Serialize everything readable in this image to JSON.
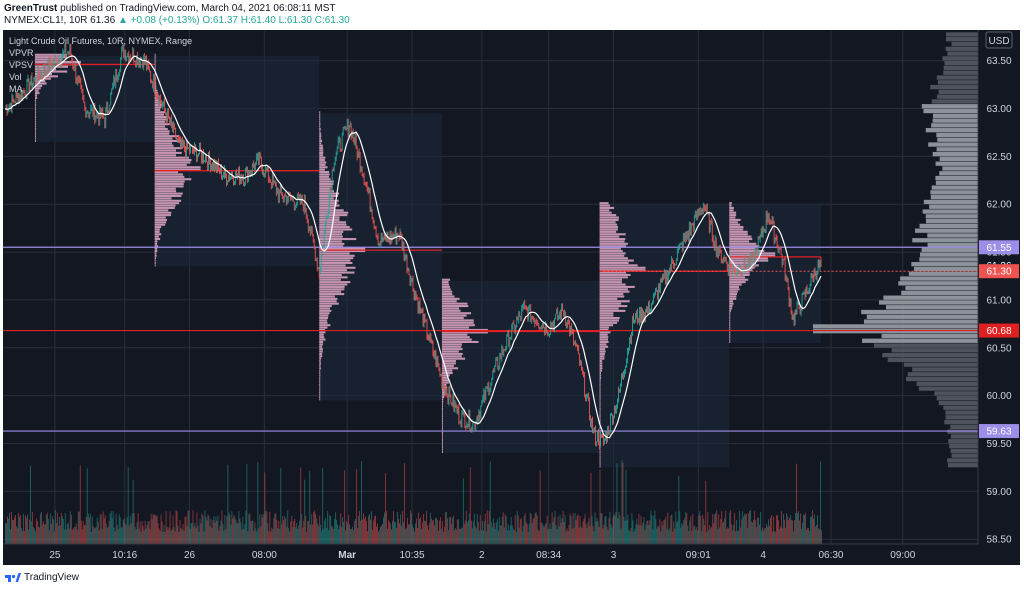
{
  "header": {
    "author": "GreenTrust",
    "published": "published on TradingView.com, March 04, 2021 06:08:11 MST",
    "symbol": "NYMEX:CL1!, 10R",
    "last": "61.36",
    "change": "▲ +0.08 (+0.13%)",
    "ohlc": {
      "o": "O:61.37",
      "h": "H:61.40",
      "l": "L:61.30",
      "c": "C:61.30"
    }
  },
  "legend": {
    "title": "Light Crude Oil Futures, 10R, NYMEX, Range",
    "indicators": [
      "VPVR",
      "VPSV",
      "Vol",
      "MA"
    ]
  },
  "currency_label": "USD",
  "footer": {
    "brand": "TradingView"
  },
  "colors": {
    "background": "#131722",
    "grid": "#2a2e39",
    "text": "#d1d4dc",
    "up": "#26a69a",
    "down": "#ef5350",
    "ma": "#ffffff",
    "poc": "#e02020",
    "level": "#9c8de8",
    "vpvr": "#9aa0a6",
    "vpsv": "#e3a8c7"
  },
  "chart_data": {
    "type": "line",
    "title": "Light Crude Oil Futures, 10R, NYMEX, Range",
    "ylabel": "USD",
    "ylim": [
      58.45,
      63.82
    ],
    "y_ticks": [
      "63.50",
      "63.00",
      "62.50",
      "62.00",
      "61.50",
      "61.00",
      "60.50",
      "60.00",
      "59.50",
      "59.00",
      "58.50"
    ],
    "x_ticks": [
      "25",
      "10:16",
      "26",
      "08:00",
      "Mar",
      "10:35",
      "2",
      "08:34",
      "3",
      "09:01",
      "4",
      "06:30",
      "09:00"
    ],
    "x_tick_bars": [
      50,
      120,
      185,
      260,
      343,
      408,
      478,
      545,
      610,
      695,
      760,
      828,
      900
    ],
    "bar_count": 820,
    "series": [
      {
        "type": "price",
        "knots": [
          [
            0,
            63.0
          ],
          [
            30,
            63.3
          ],
          [
            50,
            63.5
          ],
          [
            65,
            63.6
          ],
          [
            80,
            63.0
          ],
          [
            100,
            62.9
          ],
          [
            118,
            63.6
          ],
          [
            140,
            63.5
          ],
          [
            155,
            63.1
          ],
          [
            175,
            62.6
          ],
          [
            200,
            62.5
          ],
          [
            220,
            62.3
          ],
          [
            240,
            62.3
          ],
          [
            255,
            62.45
          ],
          [
            275,
            62.1
          ],
          [
            300,
            62.0
          ],
          [
            315,
            61.3
          ],
          [
            330,
            62.5
          ],
          [
            345,
            62.85
          ],
          [
            360,
            62.3
          ],
          [
            375,
            61.6
          ],
          [
            395,
            61.7
          ],
          [
            410,
            61.1
          ],
          [
            425,
            60.6
          ],
          [
            440,
            60.1
          ],
          [
            455,
            59.8
          ],
          [
            470,
            59.7
          ],
          [
            485,
            60.1
          ],
          [
            500,
            60.5
          ],
          [
            520,
            60.9
          ],
          [
            545,
            60.7
          ],
          [
            560,
            60.9
          ],
          [
            575,
            60.4
          ],
          [
            590,
            59.6
          ],
          [
            600,
            59.5
          ],
          [
            615,
            60.0
          ],
          [
            630,
            60.8
          ],
          [
            645,
            60.9
          ],
          [
            660,
            61.2
          ],
          [
            680,
            61.6
          ],
          [
            700,
            62.0
          ],
          [
            715,
            61.5
          ],
          [
            730,
            61.3
          ],
          [
            750,
            61.4
          ],
          [
            765,
            61.9
          ],
          [
            780,
            61.4
          ],
          [
            790,
            60.8
          ],
          [
            800,
            61.0
          ],
          [
            812,
            61.3
          ],
          [
            818,
            61.36
          ]
        ]
      }
    ],
    "horizontal_levels": [
      {
        "price": 61.55,
        "color": "#9c8de8"
      },
      {
        "price": 60.68,
        "color": "#e02020"
      },
      {
        "price": 59.63,
        "color": "#9c8de8"
      }
    ],
    "price_labels": [
      {
        "price": 61.55,
        "text": "61.55",
        "bg": "#9c8de8"
      },
      {
        "price": 61.36,
        "text": "61.36",
        "bg": "#131722"
      },
      {
        "price": 61.3,
        "text": "61.30",
        "bg": "#ef5350"
      },
      {
        "price": 60.68,
        "text": "60.68",
        "bg": "#e02020"
      },
      {
        "price": 59.63,
        "text": "59.63",
        "bg": "#9c8de8"
      }
    ],
    "vpsv_sessions": [
      {
        "start": 30,
        "end": 150,
        "lo": 62.65,
        "hi": 63.55,
        "poc": 63.46
      },
      {
        "start": 150,
        "end": 315,
        "lo": 61.35,
        "hi": 63.55,
        "poc": 62.35
      },
      {
        "start": 315,
        "end": 438,
        "lo": 59.95,
        "hi": 62.95,
        "poc": 61.52
      },
      {
        "start": 438,
        "end": 596,
        "lo": 59.4,
        "hi": 61.2,
        "poc": 60.67
      },
      {
        "start": 596,
        "end": 726,
        "lo": 59.25,
        "hi": 62.0,
        "poc": 61.3
      },
      {
        "start": 726,
        "end": 818,
        "lo": 60.55,
        "hi": 62.0,
        "poc": 61.45
      }
    ],
    "vpvr": {
      "lo": 59.25,
      "hi": 63.75,
      "poc": 60.68
    }
  }
}
